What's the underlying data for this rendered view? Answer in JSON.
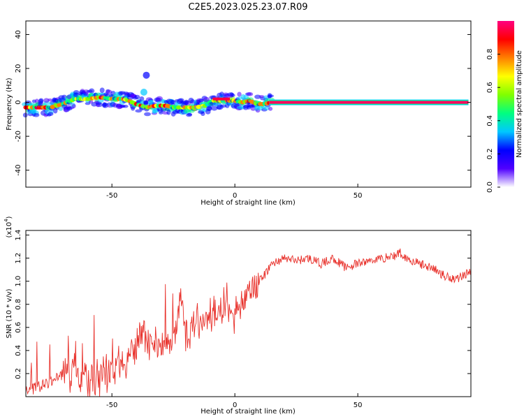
{
  "title": "C2E5.2023.025.23.07.R09",
  "colorbar": {
    "label": "Normalized spectral amplitude",
    "ticks": [
      "0.0",
      "0.2",
      "0.4",
      "0.6",
      "0.8"
    ],
    "colormap": [
      "#ffffff",
      "#5000ff",
      "#0000ff",
      "#00c8ff",
      "#00ff80",
      "#80ff00",
      "#ffff00",
      "#ff8000",
      "#ff0000",
      "#ff0080"
    ]
  },
  "chart_data": [
    {
      "type": "heatmap",
      "name": "spectrogram",
      "xlabel": "Height of straight line (km)",
      "ylabel": "Frequency (Hz)",
      "xlim": [
        -85,
        96
      ],
      "ylim": [
        -50,
        48
      ],
      "xticks": [
        "-50",
        "0",
        "50"
      ],
      "yticks": [
        "-40",
        "-20",
        "0",
        "20",
        "40"
      ],
      "ridge_x": [
        -85,
        -80,
        -75,
        -70,
        -65,
        -60,
        -55,
        -50,
        -45,
        -40,
        -36,
        -32,
        -28,
        -24,
        -20,
        -16,
        -12,
        -9,
        -5,
        -2,
        0,
        3,
        6,
        9,
        12,
        15,
        20,
        40,
        60,
        80,
        95
      ],
      "ridge_y": [
        -3,
        -3,
        -3,
        -1,
        2,
        2,
        3,
        2,
        2,
        -1,
        -3,
        -2,
        -2,
        -3,
        -3,
        -3,
        -2,
        1,
        1,
        1,
        1,
        0,
        1,
        -1,
        -1,
        0,
        0,
        0,
        0,
        0,
        0
      ]
    },
    {
      "type": "line",
      "name": "snr",
      "xlabel": "Height of straight line (km)",
      "ylabel": "SNR (10 * v/v)",
      "scale_label": "(x10",
      "scale_exp": "4",
      "scale_close": ")",
      "xlim": [
        -85,
        96
      ],
      "ylim": [
        0.0,
        1.44
      ],
      "xticks": [
        "-50",
        "0",
        "50"
      ],
      "yticks": [
        "0.2",
        "0.4",
        "0.6",
        "0.8",
        "1.0",
        "1.2",
        "1.4"
      ],
      "color": "#e8302a",
      "x": [
        -85,
        -80,
        -75,
        -70,
        -65,
        -60,
        -55,
        -50,
        -45,
        -40,
        -38,
        -35,
        -30,
        -25,
        -22,
        -20,
        -15,
        -10,
        -5,
        0,
        5,
        10,
        12,
        15,
        20,
        25,
        30,
        35,
        40,
        45,
        50,
        55,
        60,
        65,
        67,
        70,
        75,
        80,
        85,
        90,
        95
      ],
      "y": [
        0.05,
        0.08,
        0.12,
        0.2,
        0.18,
        0.15,
        0.15,
        0.25,
        0.3,
        0.4,
        0.6,
        0.45,
        0.45,
        0.5,
        0.9,
        0.55,
        0.6,
        0.7,
        0.8,
        0.75,
        0.85,
        1.0,
        1.05,
        1.15,
        1.2,
        1.18,
        1.2,
        1.15,
        1.2,
        1.12,
        1.15,
        1.18,
        1.2,
        1.22,
        1.25,
        1.2,
        1.15,
        1.12,
        1.05,
        1.02,
        1.08
      ]
    }
  ]
}
